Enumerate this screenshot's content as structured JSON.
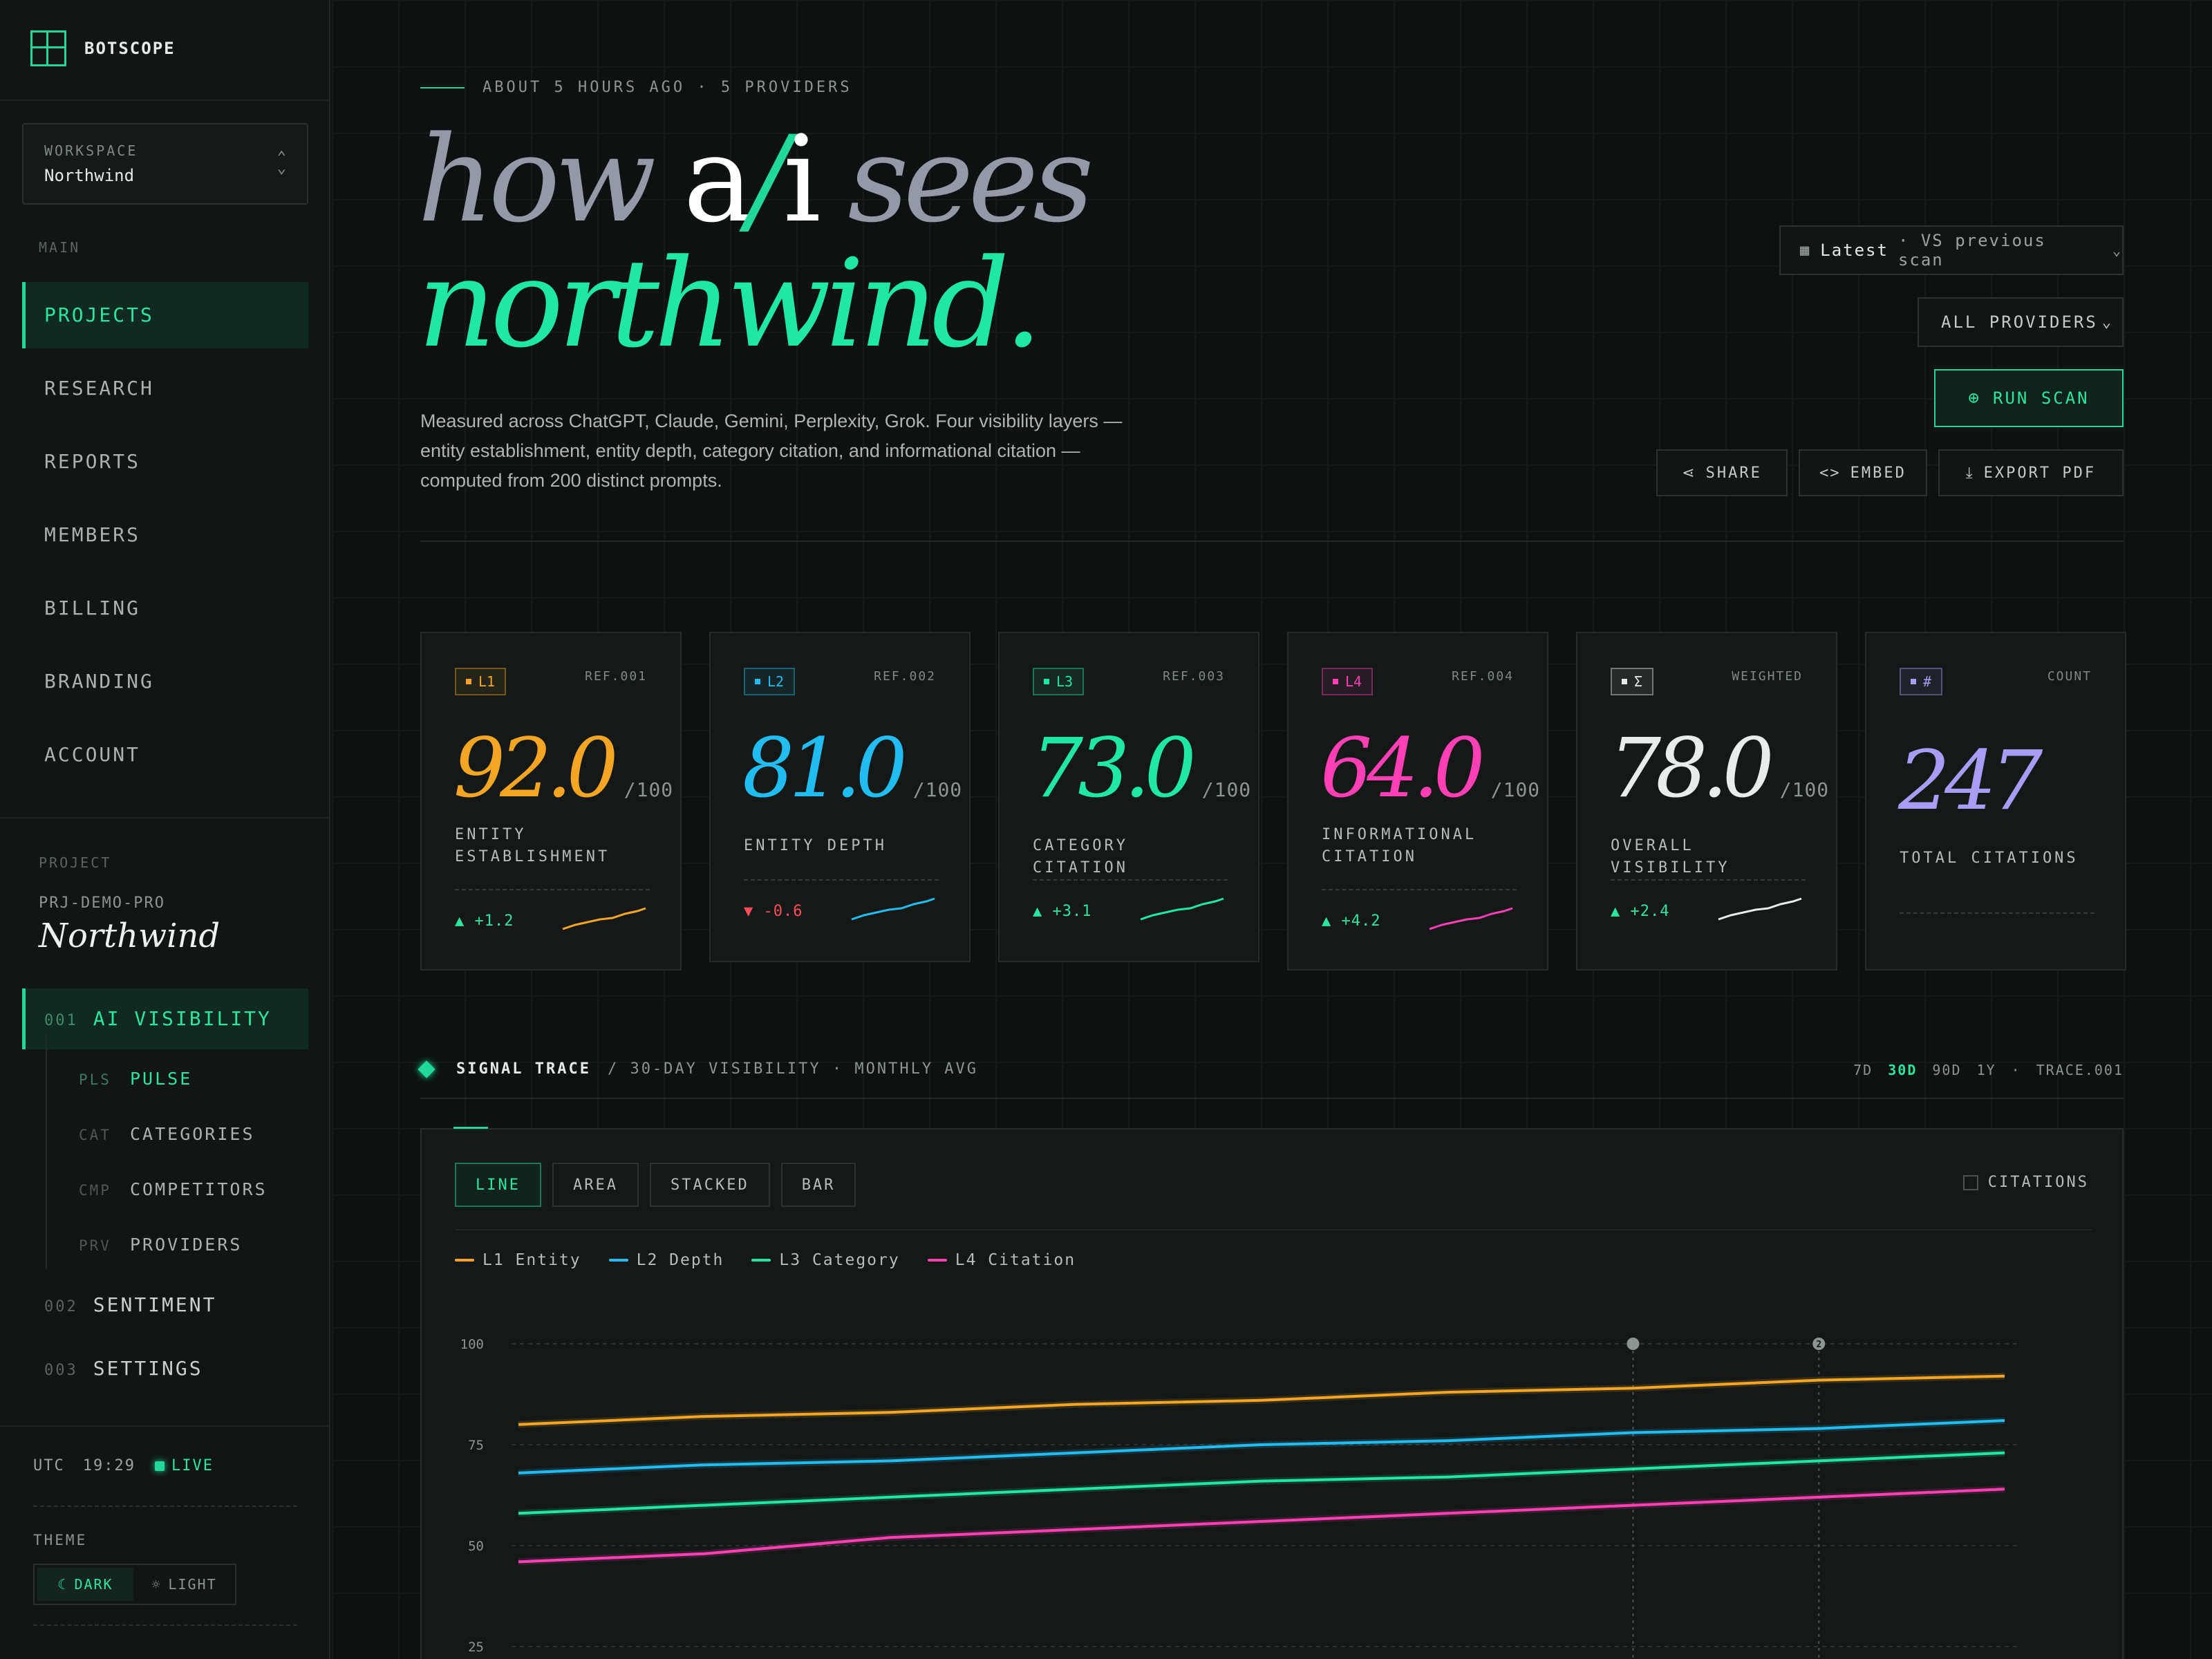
{
  "brand": {
    "name": "BOTSCOPE"
  },
  "workspace": {
    "label": "WORKSPACE",
    "value": "Northwind"
  },
  "sidebar": {
    "main_label": "MAIN",
    "nav": [
      "PROJECTS",
      "RESEARCH",
      "REPORTS",
      "MEMBERS",
      "BILLING",
      "BRANDING",
      "ACCOUNT"
    ],
    "active_nav": "PROJECTS",
    "project_label": "PROJECT",
    "project_code": "PRJ-DEMO-PRO",
    "project_name": "Northwind",
    "sections": [
      {
        "num": "001",
        "label": "AI VISIBILITY",
        "active": true
      },
      {
        "num": "002",
        "label": "SENTIMENT"
      },
      {
        "num": "003",
        "label": "SETTINGS"
      }
    ],
    "children": [
      {
        "abbr": "PLS",
        "label": "PULSE",
        "active": true
      },
      {
        "abbr": "CAT",
        "label": "CATEGORIES"
      },
      {
        "abbr": "CMP",
        "label": "COMPETITORS"
      },
      {
        "abbr": "PRV",
        "label": "PROVIDERS"
      }
    ],
    "utc_label": "UTC",
    "time": "19:29",
    "live": "LIVE",
    "theme_label": "THEME",
    "theme_dark": "DARK",
    "theme_light": "LIGHT"
  },
  "header": {
    "meta": "ABOUT 5 HOURS AGO · 5 PROVIDERS",
    "hero_how": "how",
    "hero_a": "a",
    "hero_slash": "/",
    "hero_i": "i",
    "hero_sees": "sees",
    "hero_line2": "northwind.",
    "description": "Measured across ChatGPT, Claude, Gemini, Perplexity, Grok. Four visibility layers — entity establishment, entity depth, category citation, and informational citation — computed from 200 distinct prompts."
  },
  "controls": {
    "compare_latest": "Latest",
    "compare_rest": "· VS previous scan",
    "providers": "ALL PROVIDERS",
    "run_scan": "RUN SCAN",
    "share": "SHARE",
    "embed": "EMBED",
    "export": "EXPORT PDF"
  },
  "cards": [
    {
      "badge": "L1",
      "ref": "REF.001",
      "score": "92.0",
      "den": "/100",
      "metric": "ENTITY ESTABLISHMENT",
      "delta": "▲ +1.2",
      "dir": "up",
      "color": "#f5a524"
    },
    {
      "badge": "L2",
      "ref": "REF.002",
      "score": "81.0",
      "den": "/100",
      "metric": "ENTITY DEPTH",
      "delta": "▼ -0.6",
      "dir": "down",
      "color": "#22bdf0"
    },
    {
      "badge": "L3",
      "ref": "REF.003",
      "score": "73.0",
      "den": "/100",
      "metric": "CATEGORY CITATION",
      "delta": "▲ +3.1",
      "dir": "up",
      "color": "#1fe8a5"
    },
    {
      "badge": "L4",
      "ref": "REF.004",
      "score": "64.0",
      "den": "/100",
      "metric": "INFORMATIONAL CITATION",
      "delta": "▲ +4.2",
      "dir": "up",
      "color": "#ff3fb4"
    },
    {
      "badge": "Σ",
      "ref": "WEIGHTED",
      "score": "78.0",
      "den": "/100",
      "metric": "OVERALL VISIBILITY",
      "delta": "▲ +2.4",
      "dir": "up",
      "color": "#e8ecea"
    },
    {
      "badge": "#",
      "ref": "COUNT",
      "score": "247",
      "den": "",
      "metric": "TOTAL CITATIONS",
      "delta": "",
      "dir": "",
      "color": "#a99cf5"
    }
  ],
  "signal": {
    "title": "SIGNAL TRACE",
    "subtitle": "/ 30-DAY VISIBILITY · MONTHLY AVG",
    "ranges": [
      "7D",
      "30D",
      "90D",
      "1Y"
    ],
    "active_range": "30D",
    "trace_id": "TRACE.001",
    "tabs": [
      "LINE",
      "AREA",
      "STACKED",
      "BAR"
    ],
    "active_tab": "LINE",
    "citations_toggle": "CITATIONS"
  },
  "chart_data": {
    "type": "line",
    "x": [
      1,
      2,
      3,
      4,
      5,
      6,
      7,
      8,
      9
    ],
    "ylim": [
      25,
      100
    ],
    "y_ticks": [
      "100",
      "75",
      "50",
      "25"
    ],
    "markers": [
      {
        "x": 7,
        "label": ""
      },
      {
        "x": 8,
        "label": "2"
      }
    ],
    "series": [
      {
        "name": "L1 Entity",
        "color": "#f5a524",
        "values": [
          80,
          82,
          83,
          85,
          86,
          88,
          89,
          91,
          92
        ]
      },
      {
        "name": "L2 Depth",
        "color": "#22bdf0",
        "values": [
          68,
          70,
          71,
          73,
          75,
          76,
          78,
          79,
          81
        ]
      },
      {
        "name": "L3 Category",
        "color": "#1fe8a5",
        "values": [
          58,
          60,
          62,
          64,
          66,
          67,
          69,
          71,
          73
        ]
      },
      {
        "name": "L4 Citation",
        "color": "#ff3fb4",
        "values": [
          46,
          48,
          52,
          54,
          56,
          58,
          60,
          62,
          64
        ]
      }
    ]
  }
}
